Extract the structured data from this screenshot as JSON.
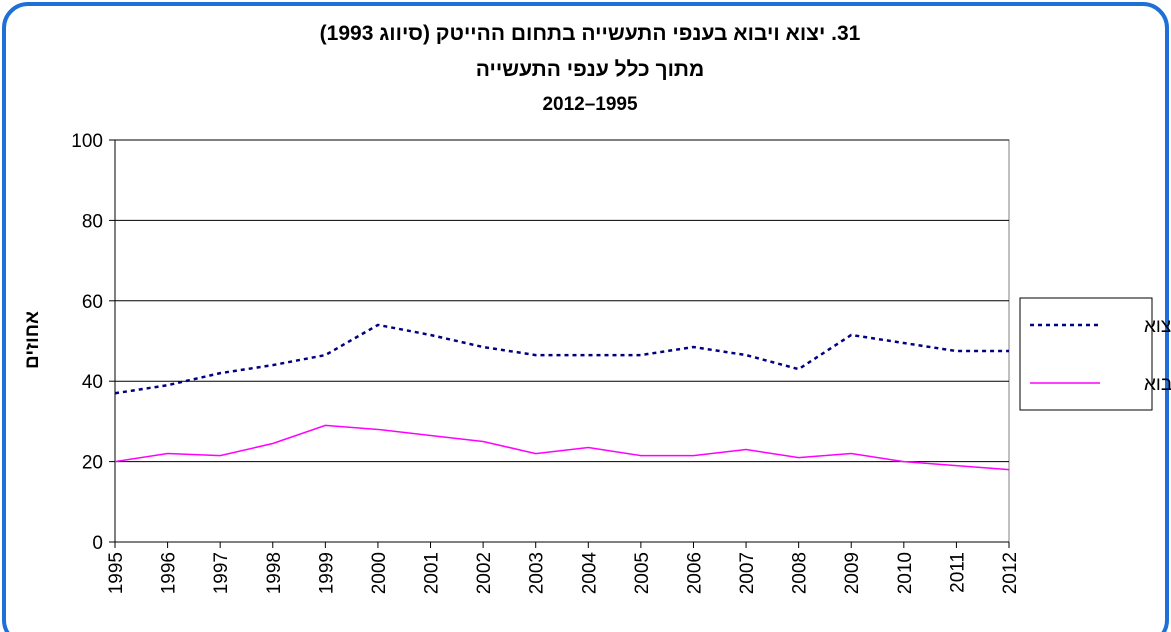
{
  "chart_data": {
    "type": "line",
    "title": [
      "31. יצוא ויבוא בענפי התעשייה בתחום ההייטק (סיווג 1993)",
      "מתוך כלל ענפי התעשייה",
      "2012–1995"
    ],
    "y_label": "אחוזים",
    "x": [
      1995,
      1996,
      1997,
      1998,
      1999,
      2000,
      2001,
      2002,
      2003,
      2004,
      2005,
      2006,
      2007,
      2008,
      2009,
      2010,
      2011,
      2012
    ],
    "xlim": [
      1995,
      2012
    ],
    "xticks": [
      1995,
      1996,
      1997,
      1998,
      1999,
      2000,
      2001,
      2002,
      2003,
      2004,
      2005,
      2006,
      2007,
      2008,
      2009,
      2010,
      2011,
      2012
    ],
    "ylim": [
      0,
      100
    ],
    "yticks": [
      0,
      20,
      40,
      60,
      80,
      100
    ],
    "grid": true,
    "legend": "right",
    "series": [
      {
        "name": "יצוא",
        "color": "#000080",
        "dashed": true,
        "values": [
          37,
          39,
          42,
          44,
          46.5,
          54,
          51.5,
          48.5,
          46.5,
          46.5,
          46.5,
          48.5,
          46.5,
          43,
          51.5,
          49.5,
          47.5,
          47.5
        ]
      },
      {
        "name": "יבוא",
        "color": "#ff00ff",
        "dashed": false,
        "values": [
          20,
          22,
          21.5,
          24.5,
          29,
          28,
          26.5,
          25,
          22,
          23.5,
          21.5,
          21.5,
          23,
          21,
          22,
          20,
          19,
          18
        ]
      }
    ]
  }
}
